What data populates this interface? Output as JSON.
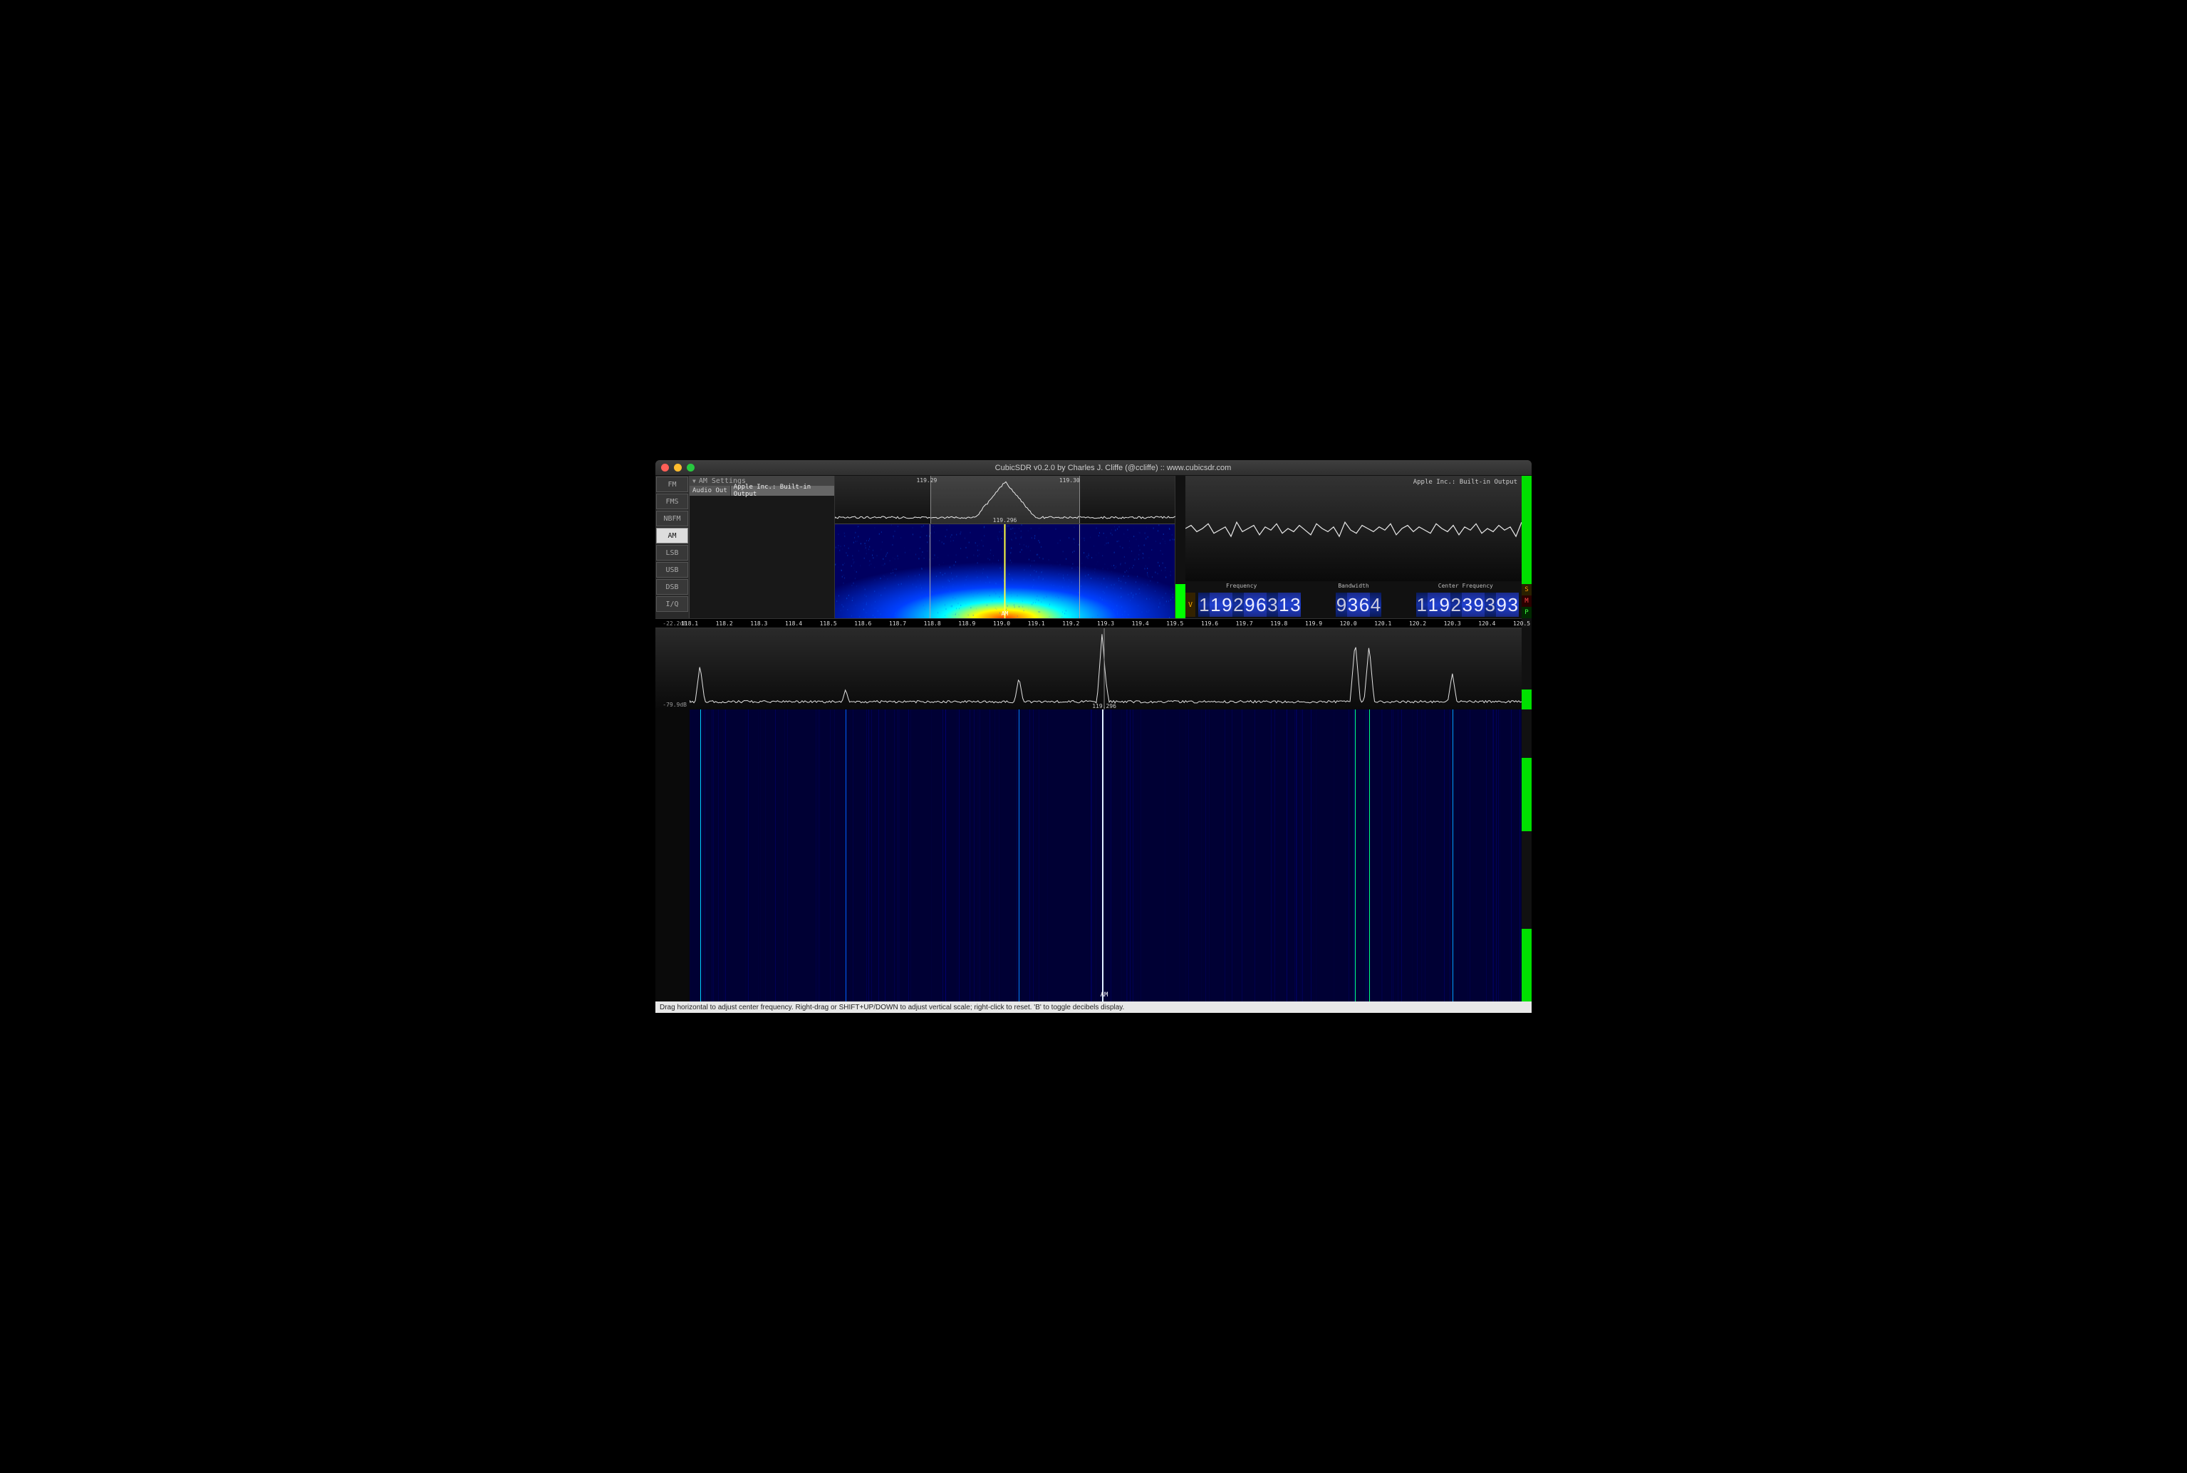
{
  "window": {
    "title": "CubicSDR v0.2.0 by Charles J. Cliffe (@ccliffe)  ::  www.cubicsdr.com"
  },
  "modes": {
    "items": [
      "FM",
      "FMS",
      "NBFM",
      "AM",
      "LSB",
      "USB",
      "DSB",
      "I/Q"
    ],
    "active": "AM"
  },
  "settings": {
    "title": "AM Settings",
    "audio_out_label": "Audio Out",
    "audio_out_value": "Apple Inc.: Built-in Output"
  },
  "demod": {
    "freq_label": "119.296",
    "freq_left_label": "119.29",
    "freq_right_label": "119.30",
    "mode_badge": "AM",
    "selection_left_pct": 28,
    "selection_width_pct": 44,
    "waterfall_colors": {
      "cold": "#000060",
      "mid1": "#0040ff",
      "mid2": "#00ffff",
      "hot1": "#ffff00",
      "hot2": "#ff4000"
    }
  },
  "audio_scope": {
    "output_label": "Apple Inc.: Built-in Output",
    "waveform_color": "#e8e8e8",
    "samples": [
      0.5,
      0.48,
      0.52,
      0.5,
      0.47,
      0.53,
      0.51,
      0.49,
      0.55,
      0.46,
      0.52,
      0.5,
      0.48,
      0.54,
      0.49,
      0.51,
      0.47,
      0.53,
      0.5,
      0.52,
      0.48,
      0.51,
      0.54,
      0.47,
      0.5,
      0.52,
      0.49,
      0.55,
      0.46,
      0.51,
      0.53,
      0.48,
      0.5,
      0.52,
      0.49,
      0.51,
      0.47,
      0.54,
      0.5,
      0.48,
      0.52,
      0.49,
      0.51,
      0.53,
      0.47,
      0.5,
      0.52,
      0.48,
      0.54,
      0.49,
      0.51,
      0.47,
      0.53,
      0.5,
      0.52,
      0.48,
      0.51,
      0.49,
      0.55,
      0.46
    ]
  },
  "tuner": {
    "labels": {
      "frequency": "Frequency",
      "bandwidth": "Bandwidth",
      "center": "Center Frequency"
    },
    "v_badge": "V",
    "frequency_digits": [
      "1",
      "1",
      "9",
      "2",
      "9",
      "6",
      "3",
      "1",
      "3"
    ],
    "bandwidth_digits": [
      "9",
      "3",
      "6",
      "4"
    ],
    "center_digits": [
      "1",
      "1",
      "9",
      "2",
      "3",
      "9",
      "3",
      "9",
      "3"
    ]
  },
  "side_indicators": {
    "items": [
      {
        "label": "S",
        "color": "#ff9900",
        "bg": "#2a2000"
      },
      {
        "label": "M",
        "color": "#ff4444",
        "bg": "#2a0000"
      },
      {
        "label": "P",
        "color": "#44ff44",
        "bg": "#002a00"
      }
    ]
  },
  "main_spectrum": {
    "db_top": "-22.2dB",
    "db_bottom": "-79.9dB",
    "freq_marker": "119.296",
    "mode_badge": "AM",
    "ruler_start": 118.1,
    "ruler_end": 120.5,
    "ruler_step": 0.1,
    "line_color": "#e0e0e0",
    "peaks": [
      {
        "f": 118.13,
        "h": 0.55
      },
      {
        "f": 118.55,
        "h": 0.25
      },
      {
        "f": 119.05,
        "h": 0.4
      },
      {
        "f": 119.29,
        "h": 0.95
      },
      {
        "f": 119.296,
        "h": 0.5
      },
      {
        "f": 120.02,
        "h": 0.85
      },
      {
        "f": 120.06,
        "h": 0.8
      },
      {
        "f": 120.3,
        "h": 0.45
      }
    ],
    "noise_floor": 0.08
  },
  "main_waterfall": {
    "bg": "#000034",
    "signal_lines": [
      {
        "f": 118.13,
        "c": "#00d0ff",
        "w": 1
      },
      {
        "f": 118.55,
        "c": "#0060ff",
        "w": 1
      },
      {
        "f": 119.05,
        "c": "#0080ff",
        "w": 1
      },
      {
        "f": 119.29,
        "c": "#e0f0ff",
        "w": 2
      },
      {
        "f": 120.02,
        "c": "#00ff80",
        "w": 1
      },
      {
        "f": 120.06,
        "c": "#00ff80",
        "w": 1
      },
      {
        "f": 120.3,
        "c": "#00a0ff",
        "w": 1
      }
    ]
  },
  "status": {
    "text": "Drag horizontal to adjust center frequency. Right-drag or SHIFT+UP/DOWN to adjust vertical scale; right-click to reset. 'B' to toggle decibels display."
  }
}
